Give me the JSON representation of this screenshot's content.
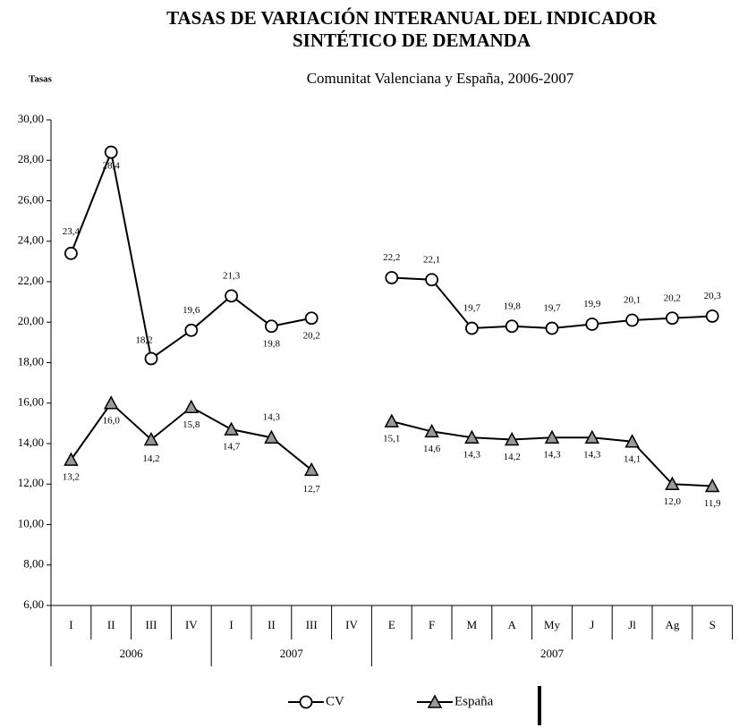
{
  "chart_data": {
    "type": "line",
    "title": "TASAS DE VARIACIÓN INTERANUAL DEL INDICADOR SINTÉTICO DE DEMANDA",
    "subtitle": "Comunitat Valenciana y España, 2006-2007",
    "y_label": "Tasas",
    "categories": [
      "I",
      "II",
      "III",
      "IV",
      "I",
      "II",
      "III",
      "IV",
      "E",
      "F",
      "M",
      "A",
      "My",
      "J",
      "Jl",
      "Ag",
      "S"
    ],
    "groups": [
      {
        "label": "2006",
        "start": 0,
        "end": 3
      },
      {
        "label": "2007",
        "start": 4,
        "end": 7
      },
      {
        "label": "2007",
        "start": 8,
        "end": 16
      }
    ],
    "series": [
      {
        "name": "CV",
        "color": "#000000",
        "marker": "circle",
        "values": [
          23.4,
          28.4,
          18.2,
          19.6,
          21.3,
          19.8,
          20.2,
          null,
          22.2,
          22.1,
          19.7,
          19.8,
          19.7,
          19.9,
          20.1,
          20.2,
          20.3
        ],
        "value_labels": [
          "23,4",
          "28,4",
          "18,2",
          "19,6",
          "21,3",
          "19,8",
          "20,2",
          null,
          "22,2",
          "22,1",
          "19,7",
          "19,8",
          "19,7",
          "19,9",
          "20,1",
          "20,2",
          "20,3"
        ]
      },
      {
        "name": "España",
        "color": "#000000",
        "marker": "triangle",
        "values": [
          13.2,
          16.0,
          14.2,
          15.8,
          14.7,
          14.3,
          12.7,
          null,
          15.1,
          14.6,
          14.3,
          14.2,
          14.3,
          14.3,
          14.1,
          12.0,
          11.9
        ],
        "value_labels": [
          "13,2",
          "16,0",
          "14,2",
          "15,8",
          "14,7",
          "14,3",
          "12,7",
          null,
          "15,1",
          "14,6",
          "14,3",
          "14,2",
          "14,3",
          "14,3",
          "14,1",
          "12,0",
          "11,9"
        ]
      }
    ],
    "ylim": [
      6,
      30
    ],
    "yticks": [
      {
        "value": 6,
        "label": "6,00"
      },
      {
        "value": 8,
        "label": "8,00"
      },
      {
        "value": 10,
        "label": "10,00"
      },
      {
        "value": 12,
        "label": "12,00"
      },
      {
        "value": 14,
        "label": "14,00"
      },
      {
        "value": 16,
        "label": "16,00"
      },
      {
        "value": 18,
        "label": "18,00"
      },
      {
        "value": 20,
        "label": "20,00"
      },
      {
        "value": 22,
        "label": "22,00"
      },
      {
        "value": 24,
        "label": "24,00"
      },
      {
        "value": 26,
        "label": "26,00"
      },
      {
        "value": 28,
        "label": "28,00"
      },
      {
        "value": 30,
        "label": "30,00"
      }
    ],
    "grid": false
  }
}
